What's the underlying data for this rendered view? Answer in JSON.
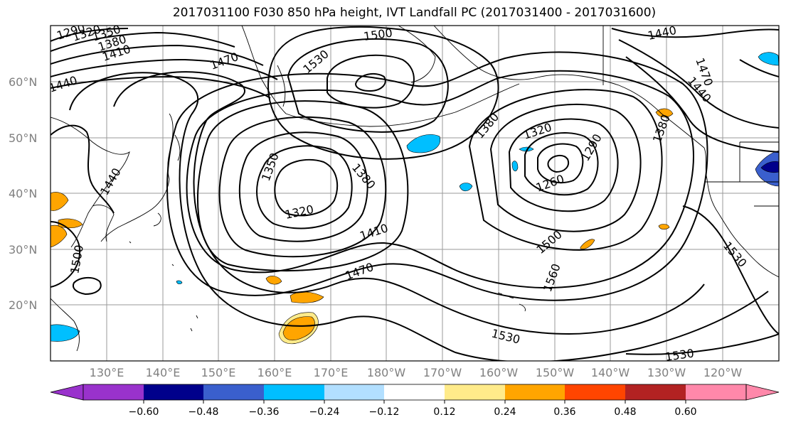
{
  "title": "2017031100 F030 850 hPa height, IVT Landfall PC (2017031400 - 2017031600)",
  "lat_labels": [
    "60°N",
    "50°N",
    "40°N",
    "30°N",
    "20°N"
  ],
  "lon_labels": [
    "130°E",
    "140°E",
    "150°E",
    "160°E",
    "170°E",
    "180°W",
    "170°W",
    "160°W",
    "150°W",
    "140°W",
    "130°W",
    "120°W"
  ],
  "contour_labels": [
    "1290",
    "1320",
    "1350",
    "1380",
    "1410",
    "1470",
    "1500",
    "1530",
    "1500",
    "1530",
    "1440",
    "1410",
    "1380",
    "1320",
    "1350",
    "1380",
    "1320",
    "1410",
    "1470",
    "1380",
    "1320",
    "1290",
    "1260",
    "1500",
    "1560",
    "1530",
    "1530",
    "1440",
    "1470",
    "1440",
    "1380",
    "1530",
    "1500",
    "1440"
  ],
  "colorbar": {
    "ticks": [
      "−0.60",
      "−0.48",
      "−0.36",
      "−0.24",
      "−0.12",
      "0.12",
      "0.24",
      "0.36",
      "0.48",
      "0.60"
    ],
    "colors": [
      "#9932CC",
      "#00008B",
      "#3A5FCD",
      "#00BFFF",
      "#B2DFFF",
      "#FFFFFF",
      "#FFEB8A",
      "#FFA500",
      "#FF4500",
      "#B22222",
      "#FF88AA"
    ]
  }
}
